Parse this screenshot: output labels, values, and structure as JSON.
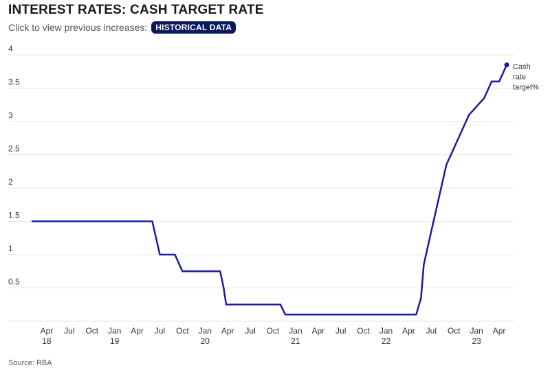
{
  "header": {
    "title": "INTEREST RATES: CASH TARGET RATE",
    "subtitle": "Click to view previous increases:",
    "button_label": "HISTORICAL DATA"
  },
  "footer": {
    "source": "Source: RBA"
  },
  "colors": {
    "line": "#1a1aa6",
    "grid": "#e6e6e6",
    "button": "#0b1a5e"
  },
  "chart_data": {
    "type": "line",
    "title": "INTEREST RATES: CASH TARGET RATE",
    "xlabel": "",
    "ylabel": "",
    "ylim": [
      0,
      4
    ],
    "yticks": [
      {
        "value": 0.5,
        "label": "0.5"
      },
      {
        "value": 1,
        "label": "1"
      },
      {
        "value": 1.5,
        "label": "1.5"
      },
      {
        "value": 2,
        "label": "2"
      },
      {
        "value": 2.5,
        "label": "2.5"
      },
      {
        "value": 3,
        "label": "3"
      },
      {
        "value": 3.5,
        "label": "3.5"
      },
      {
        "value": 4,
        "label": "4"
      }
    ],
    "xlim": [
      "2018-02",
      "2023-06"
    ],
    "xticks": [
      {
        "date": "2018-04",
        "month": "Apr",
        "year": "18"
      },
      {
        "date": "2018-07",
        "month": "Jul",
        "year": ""
      },
      {
        "date": "2018-10",
        "month": "Oct",
        "year": ""
      },
      {
        "date": "2019-01",
        "month": "Jan",
        "year": "19"
      },
      {
        "date": "2019-04",
        "month": "Apr",
        "year": ""
      },
      {
        "date": "2019-07",
        "month": "Jul",
        "year": ""
      },
      {
        "date": "2019-10",
        "month": "Oct",
        "year": ""
      },
      {
        "date": "2020-01",
        "month": "Jan",
        "year": "20"
      },
      {
        "date": "2020-04",
        "month": "Apr",
        "year": ""
      },
      {
        "date": "2020-07",
        "month": "Jul",
        "year": ""
      },
      {
        "date": "2020-10",
        "month": "Oct",
        "year": ""
      },
      {
        "date": "2021-01",
        "month": "Jan",
        "year": "21"
      },
      {
        "date": "2021-04",
        "month": "Apr",
        "year": ""
      },
      {
        "date": "2021-07",
        "month": "Jul",
        "year": ""
      },
      {
        "date": "2021-10",
        "month": "Oct",
        "year": ""
      },
      {
        "date": "2022-01",
        "month": "Jan",
        "year": "22"
      },
      {
        "date": "2022-04",
        "month": "Apr",
        "year": ""
      },
      {
        "date": "2022-07",
        "month": "Jul",
        "year": ""
      },
      {
        "date": "2022-10",
        "month": "Oct",
        "year": ""
      },
      {
        "date": "2023-01",
        "month": "Jan",
        "year": "23"
      },
      {
        "date": "2023-04",
        "month": "Apr",
        "year": ""
      }
    ],
    "grid": true,
    "legend": "none",
    "series": [
      {
        "name": "Cash rate target%",
        "points": [
          {
            "x": "2018-02",
            "y": 1.5
          },
          {
            "x": "2019-06",
            "y": 1.5
          },
          {
            "x": "2019-07",
            "y": 1.0
          },
          {
            "x": "2019-09",
            "y": 1.0
          },
          {
            "x": "2019-10",
            "y": 0.75
          },
          {
            "x": "2020-03",
            "y": 0.75
          },
          {
            "x": "2020-03-15",
            "y": 0.5
          },
          {
            "x": "2020-03-25",
            "y": 0.25
          },
          {
            "x": "2020-11",
            "y": 0.25
          },
          {
            "x": "2020-11-20",
            "y": 0.1
          },
          {
            "x": "2022-05",
            "y": 0.1
          },
          {
            "x": "2022-05-20",
            "y": 0.35
          },
          {
            "x": "2022-06",
            "y": 0.85
          },
          {
            "x": "2022-07",
            "y": 1.35
          },
          {
            "x": "2022-08",
            "y": 1.85
          },
          {
            "x": "2022-09",
            "y": 2.35
          },
          {
            "x": "2022-10",
            "y": 2.6
          },
          {
            "x": "2022-11",
            "y": 2.85
          },
          {
            "x": "2022-12",
            "y": 3.1
          },
          {
            "x": "2023-02",
            "y": 3.35
          },
          {
            "x": "2023-03",
            "y": 3.6
          },
          {
            "x": "2023-04",
            "y": 3.6
          },
          {
            "x": "2023-05",
            "y": 3.85
          }
        ],
        "end_label": [
          "Cash",
          "rate",
          "target%"
        ]
      }
    ]
  }
}
